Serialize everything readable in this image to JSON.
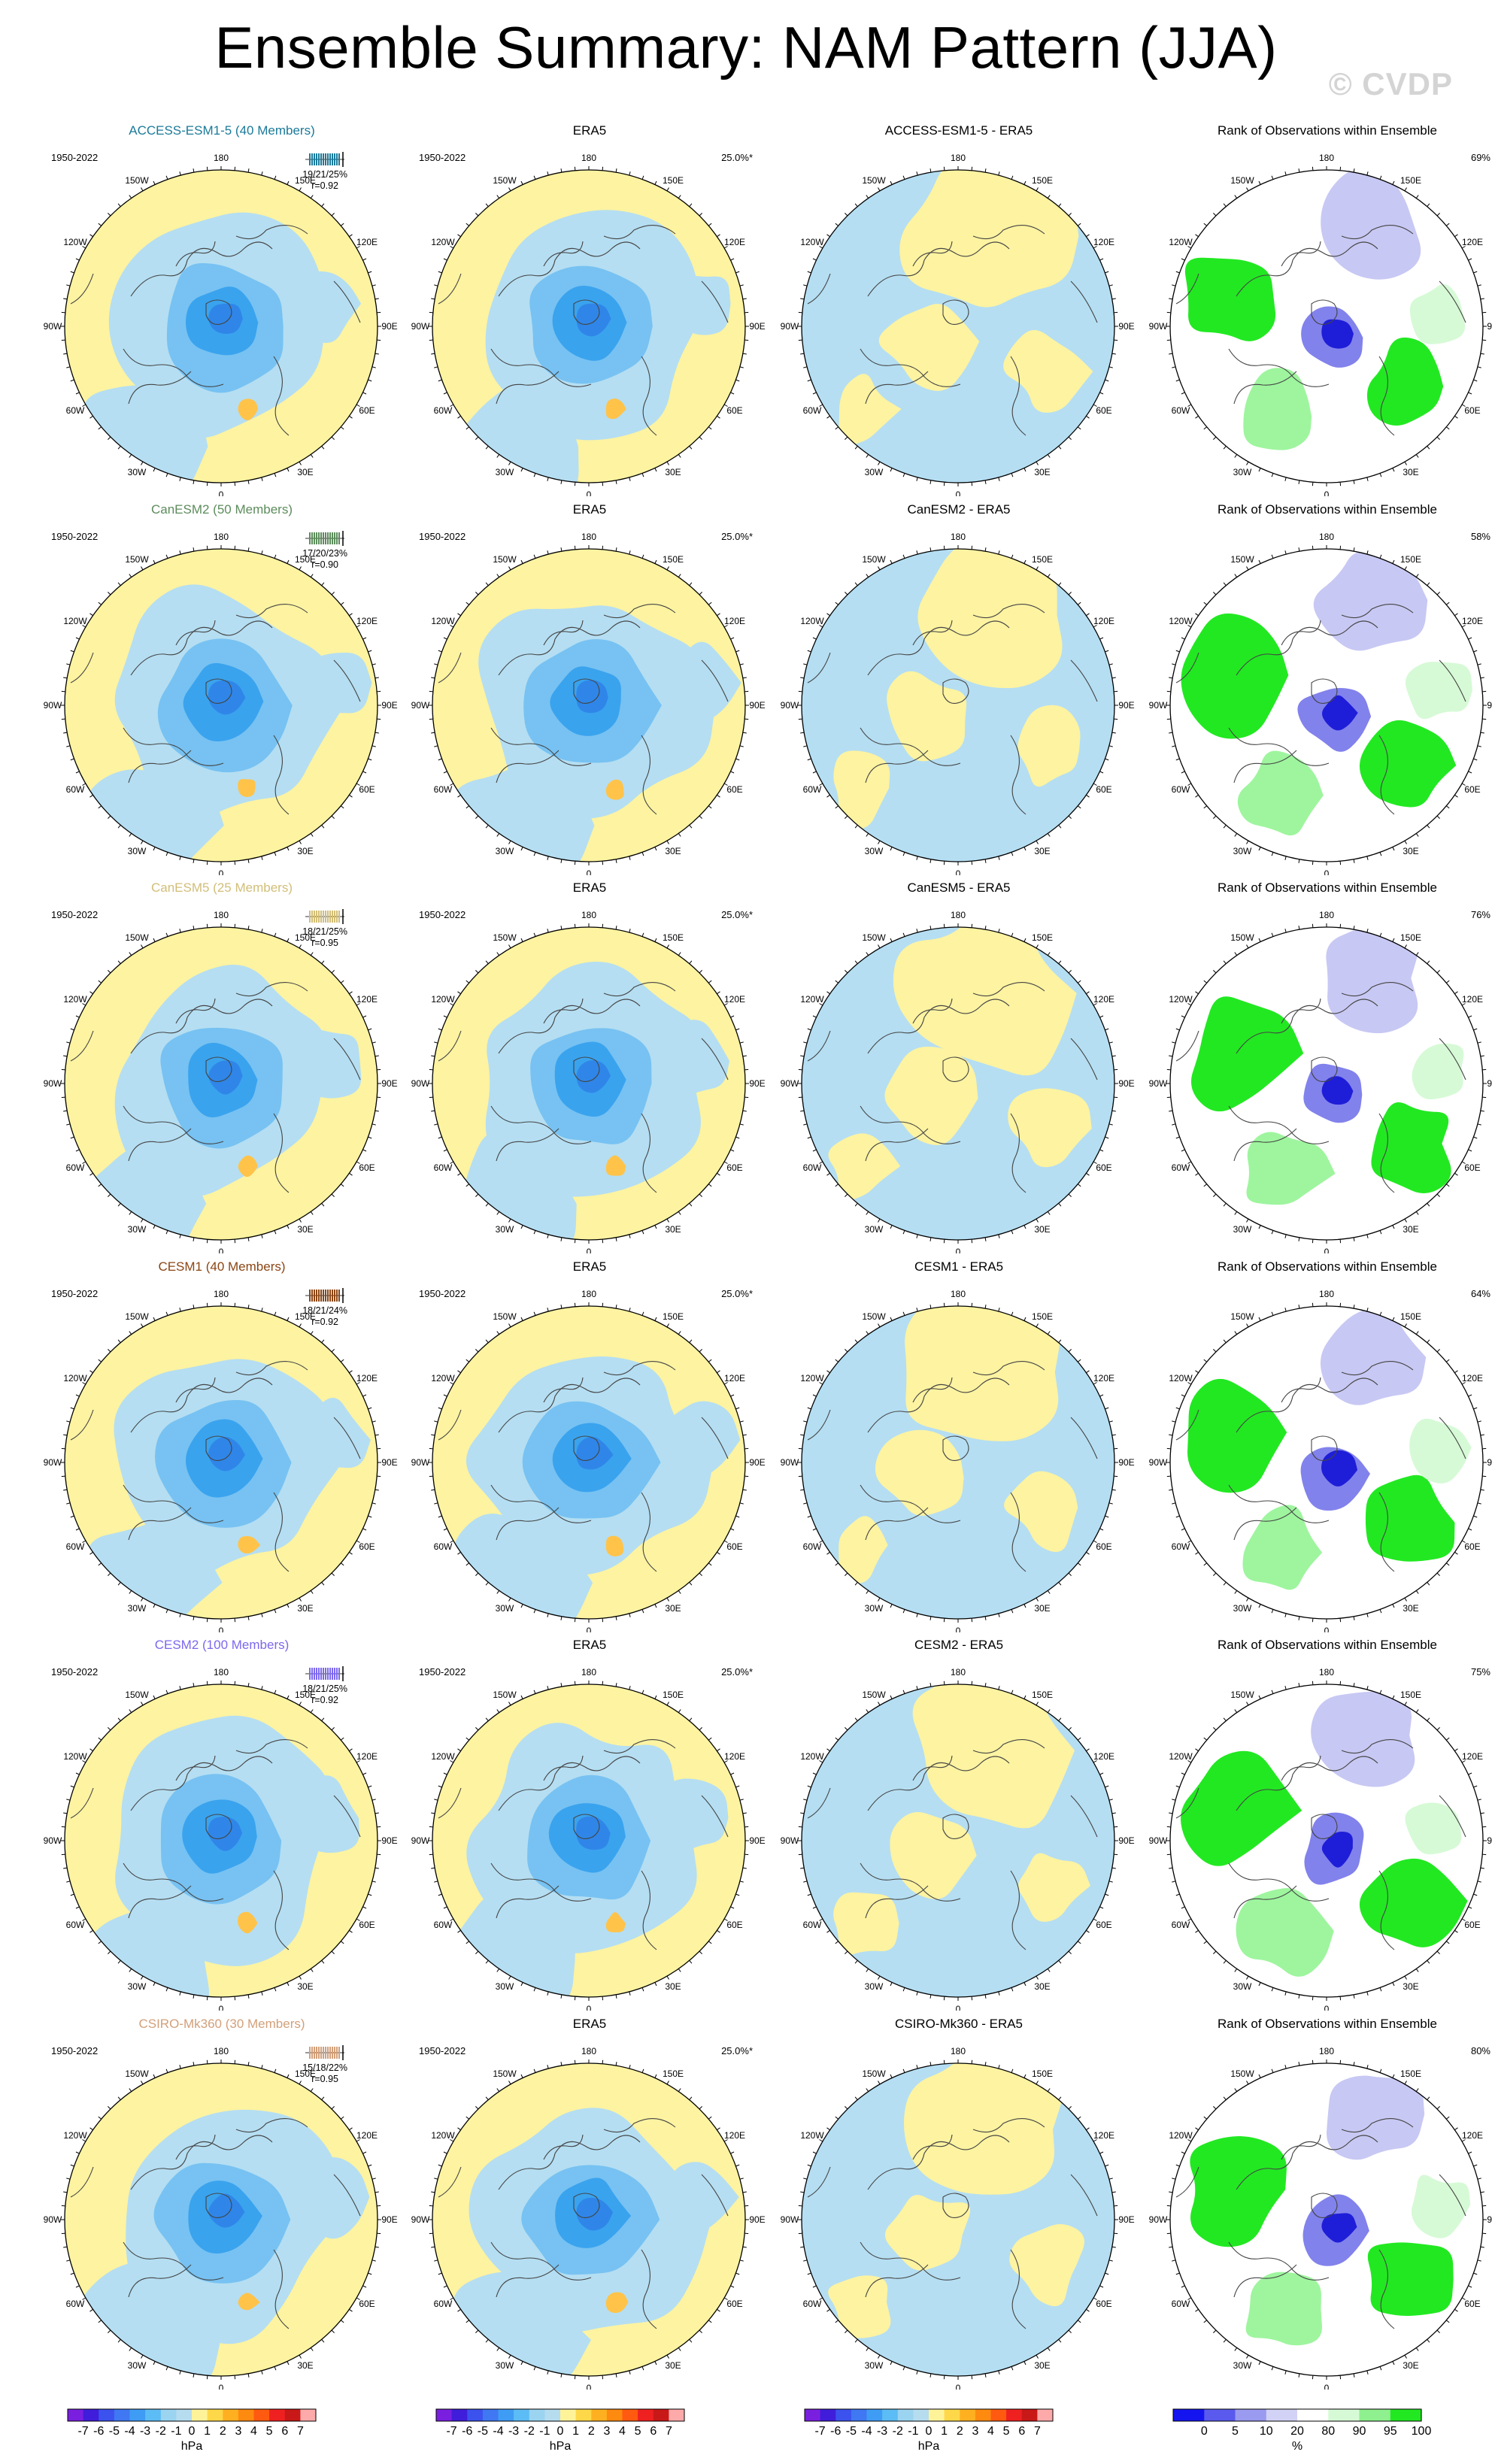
{
  "title": "Ensemble Summary: NAM Pattern (JJA)",
  "watermark": "© CVDP",
  "rank_title": "Rank of Observations within Ensemble",
  "obs_label": "ERA5",
  "period": "1950-2022",
  "obs_percent": "25.0%*",
  "lon_labels": [
    "180",
    "150E",
    "120E",
    "90E",
    "60E",
    "30E",
    "0",
    "30W",
    "60W",
    "90W",
    "120W",
    "150W"
  ],
  "rows": [
    {
      "model": "ACCESS-ESM1-5 (40 Members)",
      "color": "#1a7a9a",
      "stats": "19/21/25%",
      "r": "r=0.92",
      "diff_title": "ACCESS-ESM1-5 - ERA5",
      "rank_pct": "69%"
    },
    {
      "model": "CanESM2 (50 Members)",
      "color": "#5c8c5c",
      "stats": "17/20/23%",
      "r": "r=0.90",
      "diff_title": "CanESM2 - ERA5",
      "rank_pct": "58%"
    },
    {
      "model": "CanESM5 (25 Members)",
      "color": "#d2be78",
      "stats": "18/21/25%",
      "r": "r=0.95",
      "diff_title": "CanESM5 - ERA5",
      "rank_pct": "76%"
    },
    {
      "model": "CESM1 (40 Members)",
      "color": "#8b4513",
      "stats": "18/21/24%",
      "r": "r=0.92",
      "diff_title": "CESM1 - ERA5",
      "rank_pct": "64%"
    },
    {
      "model": "CESM2 (100 Members)",
      "color": "#7b68ee",
      "stats": "18/21/25%",
      "r": "r=0.92",
      "diff_title": "CESM2 - ERA5",
      "rank_pct": "75%"
    },
    {
      "model": "CSIRO-Mk360 (30 Members)",
      "color": "#d2a07a",
      "stats": "15/18/22%",
      "r": "r=0.95",
      "diff_title": "CSIRO-Mk360 - ERA5",
      "rank_pct": "80%"
    }
  ],
  "colorbar_hpa": {
    "ticks": [
      "-7",
      "-6",
      "-5",
      "-4",
      "-3",
      "-2",
      "-1",
      "0",
      "1",
      "2",
      "3",
      "4",
      "5",
      "6",
      "7"
    ],
    "colors": [
      "#7a1fe0",
      "#3f1ddb",
      "#3b52ee",
      "#3f78f2",
      "#3f9cf4",
      "#5cbcf5",
      "#9bd4f0",
      "#b6dcef",
      "#fff39a",
      "#ffd84a",
      "#ffb020",
      "#ff8a10",
      "#ff5a10",
      "#ef2020",
      "#c91818",
      "#ffaaaa"
    ],
    "units": "hPa"
  },
  "colorbar_rank": {
    "ticks": [
      "0",
      "5",
      "10",
      "20",
      "80",
      "90",
      "95",
      "100"
    ],
    "colors": [
      "#1414f0",
      "#5a5aee",
      "#9a9af0",
      "#d2d2f6",
      "#ffffff",
      "#d6fad6",
      "#8ef08e",
      "#22e822"
    ],
    "units": "%"
  },
  "palette": {
    "blue_fill": "#b5def2",
    "yellow_fill": "#fdf3a1",
    "deep_blue": "#3aa3ee",
    "mid_blue": "#77c2f2",
    "orange": "#ffc34a",
    "rank_green": "#22e822",
    "rank_blue": "#1e1ed8"
  }
}
